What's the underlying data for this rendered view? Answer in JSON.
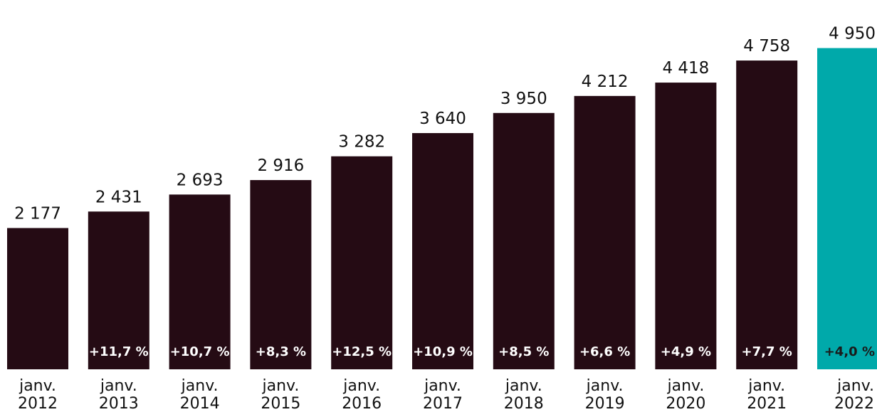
{
  "chart_data": {
    "type": "bar",
    "categories": [
      [
        "janv.",
        "2012"
      ],
      [
        "janv.",
        "2013"
      ],
      [
        "janv.",
        "2014"
      ],
      [
        "janv.",
        "2015"
      ],
      [
        "janv.",
        "2016"
      ],
      [
        "janv.",
        "2017"
      ],
      [
        "janv.",
        "2018"
      ],
      [
        "janv.",
        "2019"
      ],
      [
        "janv.",
        "2020"
      ],
      [
        "janv.",
        "2021"
      ],
      [
        "janv.",
        "2022"
      ]
    ],
    "values": [
      2177,
      2431,
      2693,
      2916,
      3282,
      3640,
      3950,
      4212,
      4418,
      4758,
      4950
    ],
    "value_labels": [
      "2 177",
      "2 431",
      "2 693",
      "2 916",
      "3 282",
      "3 640",
      "3 950",
      "4 212",
      "4 418",
      "4 758",
      "4 950"
    ],
    "growth_labels": [
      "",
      "+11,7 %",
      "+10,7 %",
      "+8,3 %",
      "+12,5 %",
      "+10,9 %",
      "+8,5 %",
      "+6,6 %",
      "+4,9 %",
      "+7,7 %",
      "+4,0 %"
    ],
    "ylim": [
      0,
      5000
    ],
    "grid": false,
    "colors": {
      "bar": "#250b14",
      "highlight": "#00a9aa",
      "growth_text_on_bar": "#ffffff",
      "growth_text_on_highlight": "#1a1a1a"
    },
    "highlight_index": 10
  }
}
